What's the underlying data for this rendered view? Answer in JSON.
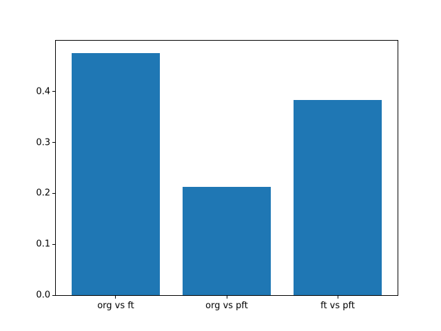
{
  "figure": {
    "background": "#ffffff"
  },
  "chart_data": {
    "type": "bar",
    "categories": [
      "org vs ft",
      "org vs pft",
      "ft vs pft"
    ],
    "values": [
      0.475,
      0.213,
      0.383
    ],
    "title": "",
    "xlabel": "",
    "ylabel": "",
    "ylim": [
      0,
      0.5
    ],
    "yticks": [
      0.0,
      0.1,
      0.2,
      0.3,
      0.4
    ],
    "ytick_decimals": 1,
    "xlim": [
      -0.54,
      2.54
    ],
    "bar_positions": [
      0,
      1,
      2
    ],
    "bar_width": 0.8,
    "bar_color": "#1f77b4",
    "grid": false,
    "legend": null
  }
}
